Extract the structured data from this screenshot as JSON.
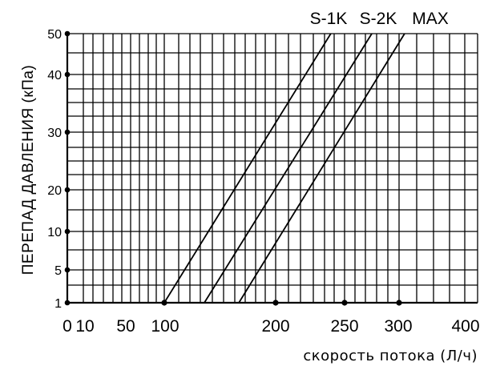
{
  "chart_data": {
    "type": "line",
    "title": "",
    "xlabel": "скорость потока (Л/ч)",
    "ylabel": "ПЕРЕПАД ДАВЛЕНИЯ (кПа)",
    "xlim": [
      0,
      400
    ],
    "ylim": [
      1,
      50
    ],
    "x_ticks": [
      {
        "value": 0,
        "label": "0"
      },
      {
        "value": 10,
        "label": "10"
      },
      {
        "value": 50,
        "label": "50"
      },
      {
        "value": 100,
        "label": "100"
      },
      {
        "value": 200,
        "label": "200"
      },
      {
        "value": 250,
        "label": "250"
      },
      {
        "value": 300,
        "label": "300"
      },
      {
        "value": 400,
        "label": "400"
      }
    ],
    "y_ticks": [
      {
        "value": 1,
        "label": "1"
      },
      {
        "value": 5,
        "label": "5"
      },
      {
        "value": 10,
        "label": "10"
      },
      {
        "value": 20,
        "label": "20"
      },
      {
        "value": 30,
        "label": "30"
      },
      {
        "value": 40,
        "label": "40"
      },
      {
        "value": 50,
        "label": "50"
      }
    ],
    "grid": true,
    "series": [
      {
        "name": "S-1K",
        "x": [
          100,
          240
        ],
        "y": [
          1,
          50
        ]
      },
      {
        "name": "S-2K",
        "x": [
          136,
          275
        ],
        "y": [
          1,
          50
        ]
      },
      {
        "name": "MAX",
        "x": [
          167,
          307
        ],
        "y": [
          1,
          50
        ]
      }
    ]
  }
}
